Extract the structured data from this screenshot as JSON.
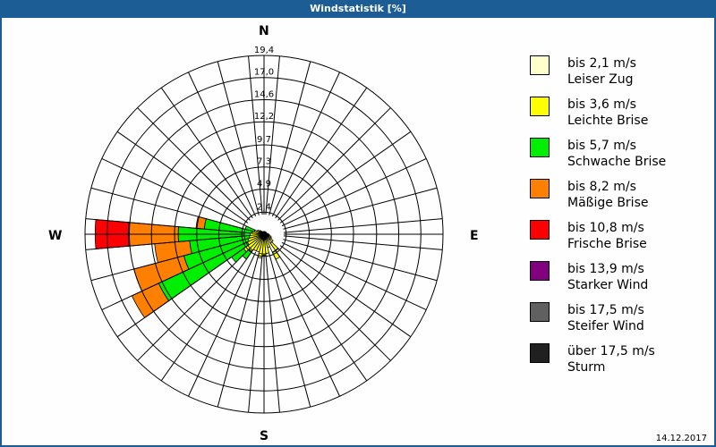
{
  "window": {
    "title": "Windstatistik [%]"
  },
  "footer": {
    "date": "14.12.2017"
  },
  "compass": {
    "N": "N",
    "E": "E",
    "S": "S",
    "W": "W"
  },
  "legend": [
    {
      "range": "bis 2,1 m/s",
      "name": "Leiser Zug",
      "color": "#ffffcc"
    },
    {
      "range": "bis 3,6 m/s",
      "name": "Leichte Brise",
      "color": "#ffff00"
    },
    {
      "range": "bis 5,7 m/s",
      "name": "Schwache Brise",
      "color": "#00ee00"
    },
    {
      "range": "bis 8,2 m/s",
      "name": "Mäßige Brise",
      "color": "#ff8000"
    },
    {
      "range": "bis 10,8 m/s",
      "name": "Frische Brise",
      "color": "#ff0000"
    },
    {
      "range": "bis 13,9 m/s",
      "name": "Starker Wind",
      "color": "#800080"
    },
    {
      "range": "bis 17,5 m/s",
      "name": "Steifer Wind",
      "color": "#606060"
    },
    {
      "range": "über 17,5 m/s",
      "name": "Sturm",
      "color": "#202020"
    }
  ],
  "chart_data": {
    "type": "wind-rose",
    "title": "Windstatistik [%]",
    "unit": "%",
    "ring_labels": [
      "2,4",
      "4,9",
      "7,3",
      "9,7",
      "12,2",
      "14,6",
      "17,0",
      "19,4"
    ],
    "ring_values": [
      2.4,
      4.9,
      7.3,
      9.7,
      12.2,
      14.6,
      17.0,
      19.4
    ],
    "rmax": 19.4,
    "sector_width_deg": 10,
    "series_names": [
      "Leiser Zug",
      "Leichte Brise",
      "Schwache Brise",
      "Mäßige Brise",
      "Frische Brise",
      "Starker Wind",
      "Steifer Wind",
      "Sturm"
    ],
    "sectors": [
      {
        "dir": 90,
        "values": [
          0.3,
          0.2,
          0,
          0,
          0,
          0,
          0,
          0
        ]
      },
      {
        "dir": 100,
        "values": [
          0.4,
          0.2,
          0,
          0,
          0,
          0,
          0,
          0
        ]
      },
      {
        "dir": 110,
        "values": [
          0.5,
          0.3,
          0,
          0,
          0,
          0,
          0,
          0
        ]
      },
      {
        "dir": 120,
        "values": [
          0.6,
          0.3,
          0,
          0,
          0,
          0,
          0,
          0
        ]
      },
      {
        "dir": 130,
        "values": [
          0.8,
          0.4,
          0,
          0,
          0,
          0,
          0,
          0
        ]
      },
      {
        "dir": 140,
        "values": [
          1.2,
          1.0,
          0,
          0,
          0,
          0,
          0,
          0
        ]
      },
      {
        "dir": 150,
        "values": [
          2.2,
          0.8,
          0,
          0,
          0,
          0,
          0,
          0
        ]
      },
      {
        "dir": 160,
        "values": [
          0.6,
          0.9,
          0,
          0,
          0,
          0,
          0,
          0
        ]
      },
      {
        "dir": 170,
        "values": [
          0.6,
          1.5,
          0,
          0,
          0,
          0,
          0,
          0
        ]
      },
      {
        "dir": 180,
        "values": [
          0.6,
          1.7,
          0,
          0,
          0,
          0,
          0,
          0
        ]
      },
      {
        "dir": 190,
        "values": [
          0.6,
          2.0,
          0,
          0,
          0,
          0,
          0,
          0
        ]
      },
      {
        "dir": 200,
        "values": [
          0.5,
          1.5,
          0,
          0,
          0,
          0,
          0,
          0
        ]
      },
      {
        "dir": 210,
        "values": [
          0.5,
          1.5,
          0,
          0,
          0,
          0,
          0,
          0
        ]
      },
      {
        "dir": 220,
        "values": [
          0.5,
          1.8,
          1.0,
          0,
          0,
          0,
          0,
          0
        ]
      },
      {
        "dir": 230,
        "values": [
          0.5,
          2.2,
          1.6,
          0,
          0,
          0,
          0,
          0
        ]
      },
      {
        "dir": 240,
        "values": [
          0.4,
          1.6,
          10.6,
          3.2,
          0,
          0,
          0,
          0
        ]
      },
      {
        "dir": 250,
        "values": [
          0.4,
          1.4,
          7.2,
          5.6,
          0,
          0,
          0,
          0
        ]
      },
      {
        "dir": 260,
        "values": [
          0.4,
          1.2,
          6.5,
          3.8,
          0,
          0,
          0,
          0
        ]
      },
      {
        "dir": 270,
        "values": [
          0.3,
          1.2,
          7.8,
          5.4,
          3.6,
          0,
          0,
          0
        ]
      },
      {
        "dir": 280,
        "values": [
          0.3,
          1.0,
          5.2,
          0.9,
          0,
          0,
          0,
          0
        ]
      },
      {
        "dir": 290,
        "values": [
          0.3,
          0.8,
          1.0,
          0,
          0,
          0,
          0,
          0
        ]
      },
      {
        "dir": 300,
        "values": [
          0.3,
          0.5,
          0,
          0,
          0,
          0,
          0,
          0
        ]
      },
      {
        "dir": 310,
        "values": [
          0.3,
          0.3,
          0,
          0,
          0,
          0,
          0,
          0
        ]
      },
      {
        "dir": 320,
        "values": [
          0.2,
          0.2,
          0,
          0,
          0,
          0,
          0,
          0
        ]
      },
      {
        "dir": 330,
        "values": [
          0.2,
          0.1,
          0,
          0,
          0,
          0,
          0,
          0
        ]
      },
      {
        "dir": 340,
        "values": [
          0.2,
          0.1,
          0,
          0,
          0,
          0,
          0,
          0
        ]
      },
      {
        "dir": 350,
        "values": [
          0.2,
          0.1,
          0,
          0,
          0,
          0,
          0,
          0
        ]
      },
      {
        "dir": 0,
        "values": [
          0.2,
          0.1,
          0,
          0,
          0,
          0,
          0,
          0
        ]
      },
      {
        "dir": 10,
        "values": [
          0.2,
          0.1,
          0,
          0,
          0,
          0,
          0,
          0
        ]
      },
      {
        "dir": 20,
        "values": [
          0.2,
          0.1,
          0,
          0,
          0,
          0,
          0,
          0
        ]
      },
      {
        "dir": 30,
        "values": [
          0.2,
          0.1,
          0,
          0,
          0,
          0,
          0,
          0
        ]
      },
      {
        "dir": 40,
        "values": [
          0.2,
          0.1,
          0,
          0,
          0,
          0,
          0,
          0
        ]
      },
      {
        "dir": 50,
        "values": [
          0.2,
          0.1,
          0,
          0,
          0,
          0,
          0,
          0
        ]
      },
      {
        "dir": 60,
        "values": [
          0.2,
          0.1,
          0,
          0,
          0,
          0,
          0,
          0
        ]
      },
      {
        "dir": 70,
        "values": [
          0.2,
          0.1,
          0,
          0,
          0,
          0,
          0,
          0
        ]
      },
      {
        "dir": 80,
        "values": [
          0.3,
          0.1,
          0,
          0,
          0,
          0,
          0,
          0
        ]
      }
    ]
  }
}
